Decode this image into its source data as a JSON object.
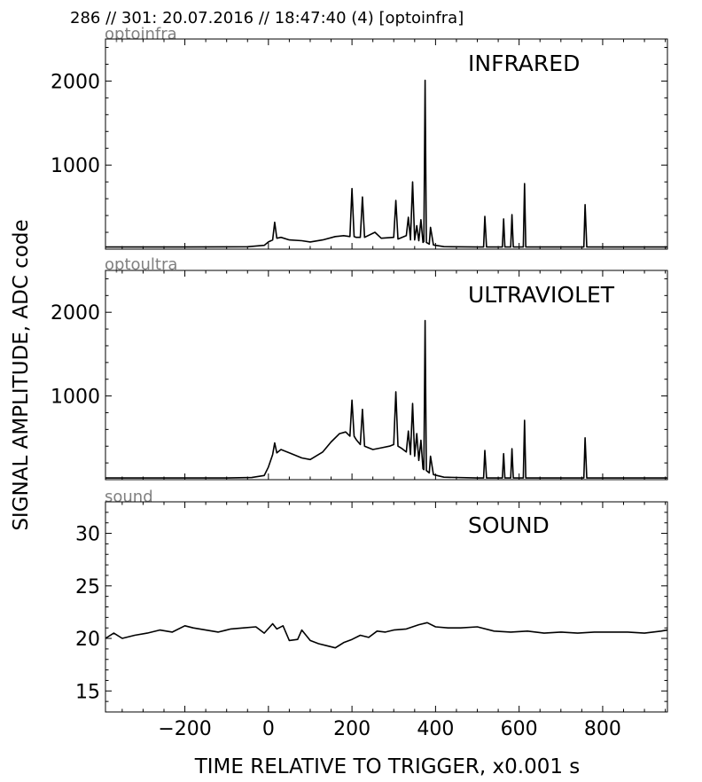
{
  "header": "286 // 301:   20.07.2016 // 18:47:40 (4)  [optoinfra]",
  "ylabel": "SIGNAL AMPLITUDE,  ADC code",
  "xlabel": "TIME RELATIVE TO TRIGGER,   x0.001 s",
  "xlim": [
    -390,
    955
  ],
  "xticks": [
    -200,
    0,
    200,
    400,
    600,
    800
  ],
  "xtick_labels": [
    "−200",
    "0",
    "200",
    "400",
    "600",
    "800"
  ],
  "line_color": "#000000",
  "channel_color": "#808080",
  "panels": [
    {
      "channel": "optoinfra",
      "title": "INFRARED",
      "ylim": [
        0,
        2500
      ],
      "yticks": [
        1000,
        2000
      ],
      "ytick_labels": [
        "1000",
        "2000"
      ]
    },
    {
      "channel": "optoultra",
      "title": "ULTRAVIOLET",
      "ylim": [
        0,
        2500
      ],
      "yticks": [
        1000,
        2000
      ],
      "ytick_labels": [
        "1000",
        "2000"
      ]
    },
    {
      "channel": "sound",
      "title": "SOUND",
      "ylim": [
        13,
        33
      ],
      "yticks": [
        15,
        20,
        25,
        30
      ],
      "ytick_labels": [
        "15",
        "20",
        "25",
        "30"
      ]
    }
  ],
  "chart_data": [
    {
      "type": "line",
      "title": "INFRARED",
      "xlabel": "TIME RELATIVE TO TRIGGER,   x0.001 s",
      "ylabel": "SIGNAL AMPLITUDE,  ADC code",
      "xlim": [
        -390,
        955
      ],
      "ylim": [
        0,
        2500
      ],
      "grid": false,
      "series": [
        {
          "x": [
            -390,
            -200,
            -50,
            -10,
            0,
            10,
            15,
            20,
            30,
            50,
            80,
            100,
            130,
            160,
            180,
            195,
            200,
            205,
            210,
            220,
            225,
            230,
            255,
            270,
            300,
            305,
            310,
            330,
            335,
            340,
            345,
            350,
            355,
            360,
            365,
            370,
            372,
            375,
            378,
            385,
            388,
            395,
            420,
            500,
            515,
            518,
            522,
            560,
            563,
            566,
            580,
            583,
            586,
            610,
            613,
            616,
            650,
            755,
            758,
            762,
            850,
            955
          ],
          "y": [
            25,
            25,
            28,
            45,
            85,
            110,
            320,
            130,
            140,
            110,
            100,
            85,
            110,
            150,
            160,
            150,
            720,
            150,
            140,
            140,
            620,
            140,
            200,
            130,
            140,
            580,
            120,
            160,
            380,
            110,
            800,
            110,
            280,
            100,
            350,
            80,
            90,
            2010,
            80,
            60,
            260,
            50,
            30,
            25,
            25,
            390,
            25,
            25,
            360,
            25,
            25,
            410,
            25,
            25,
            780,
            25,
            25,
            25,
            530,
            25,
            25,
            25
          ]
        }
      ]
    },
    {
      "type": "line",
      "title": "ULTRAVIOLET",
      "xlabel": "TIME RELATIVE TO TRIGGER,   x0.001 s",
      "ylabel": "SIGNAL AMPLITUDE,  ADC code",
      "xlim": [
        -390,
        955
      ],
      "ylim": [
        0,
        2500
      ],
      "grid": false,
      "series": [
        {
          "x": [
            -390,
            -100,
            -40,
            -10,
            0,
            10,
            15,
            20,
            30,
            50,
            80,
            100,
            130,
            150,
            170,
            185,
            195,
            200,
            205,
            210,
            220,
            225,
            230,
            250,
            270,
            290,
            300,
            305,
            310,
            320,
            330,
            335,
            340,
            345,
            350,
            355,
            360,
            365,
            370,
            372,
            375,
            378,
            385,
            388,
            395,
            420,
            500,
            515,
            518,
            522,
            560,
            563,
            566,
            580,
            583,
            586,
            610,
            613,
            616,
            650,
            755,
            758,
            762,
            850,
            955
          ],
          "y": [
            20,
            20,
            25,
            50,
            150,
            300,
            440,
            320,
            360,
            320,
            260,
            240,
            330,
            450,
            550,
            570,
            520,
            950,
            520,
            480,
            420,
            840,
            400,
            360,
            380,
            400,
            420,
            1050,
            400,
            370,
            330,
            580,
            300,
            910,
            280,
            550,
            230,
            470,
            130,
            120,
            1900,
            110,
            80,
            280,
            60,
            30,
            20,
            20,
            350,
            20,
            20,
            310,
            20,
            20,
            370,
            20,
            20,
            710,
            20,
            20,
            20,
            500,
            20,
            20,
            20
          ]
        }
      ]
    },
    {
      "type": "line",
      "title": "SOUND",
      "xlabel": "TIME RELATIVE TO TRIGGER,   x0.001 s",
      "ylabel": "SIGNAL AMPLITUDE,  ADC code",
      "xlim": [
        -390,
        955
      ],
      "ylim": [
        13,
        33
      ],
      "grid": false,
      "series": [
        {
          "x": [
            -390,
            -370,
            -350,
            -320,
            -290,
            -260,
            -230,
            -200,
            -180,
            -150,
            -120,
            -90,
            -60,
            -30,
            -10,
            10,
            20,
            35,
            50,
            70,
            80,
            100,
            120,
            140,
            160,
            180,
            200,
            220,
            240,
            260,
            280,
            300,
            330,
            360,
            380,
            400,
            430,
            460,
            500,
            540,
            580,
            620,
            660,
            700,
            740,
            780,
            820,
            860,
            900,
            940,
            955
          ],
          "y": [
            20.0,
            20.5,
            20.0,
            20.3,
            20.5,
            20.8,
            20.6,
            21.2,
            21.0,
            20.8,
            20.6,
            20.9,
            21.0,
            21.1,
            20.5,
            21.4,
            20.9,
            21.2,
            19.8,
            19.9,
            20.8,
            19.8,
            19.5,
            19.3,
            19.1,
            19.6,
            19.9,
            20.3,
            20.1,
            20.7,
            20.6,
            20.8,
            20.9,
            21.3,
            21.5,
            21.1,
            21.0,
            21.0,
            21.1,
            20.7,
            20.6,
            20.7,
            20.5,
            20.6,
            20.5,
            20.6,
            20.6,
            20.6,
            20.5,
            20.7,
            20.8
          ]
        }
      ]
    }
  ]
}
